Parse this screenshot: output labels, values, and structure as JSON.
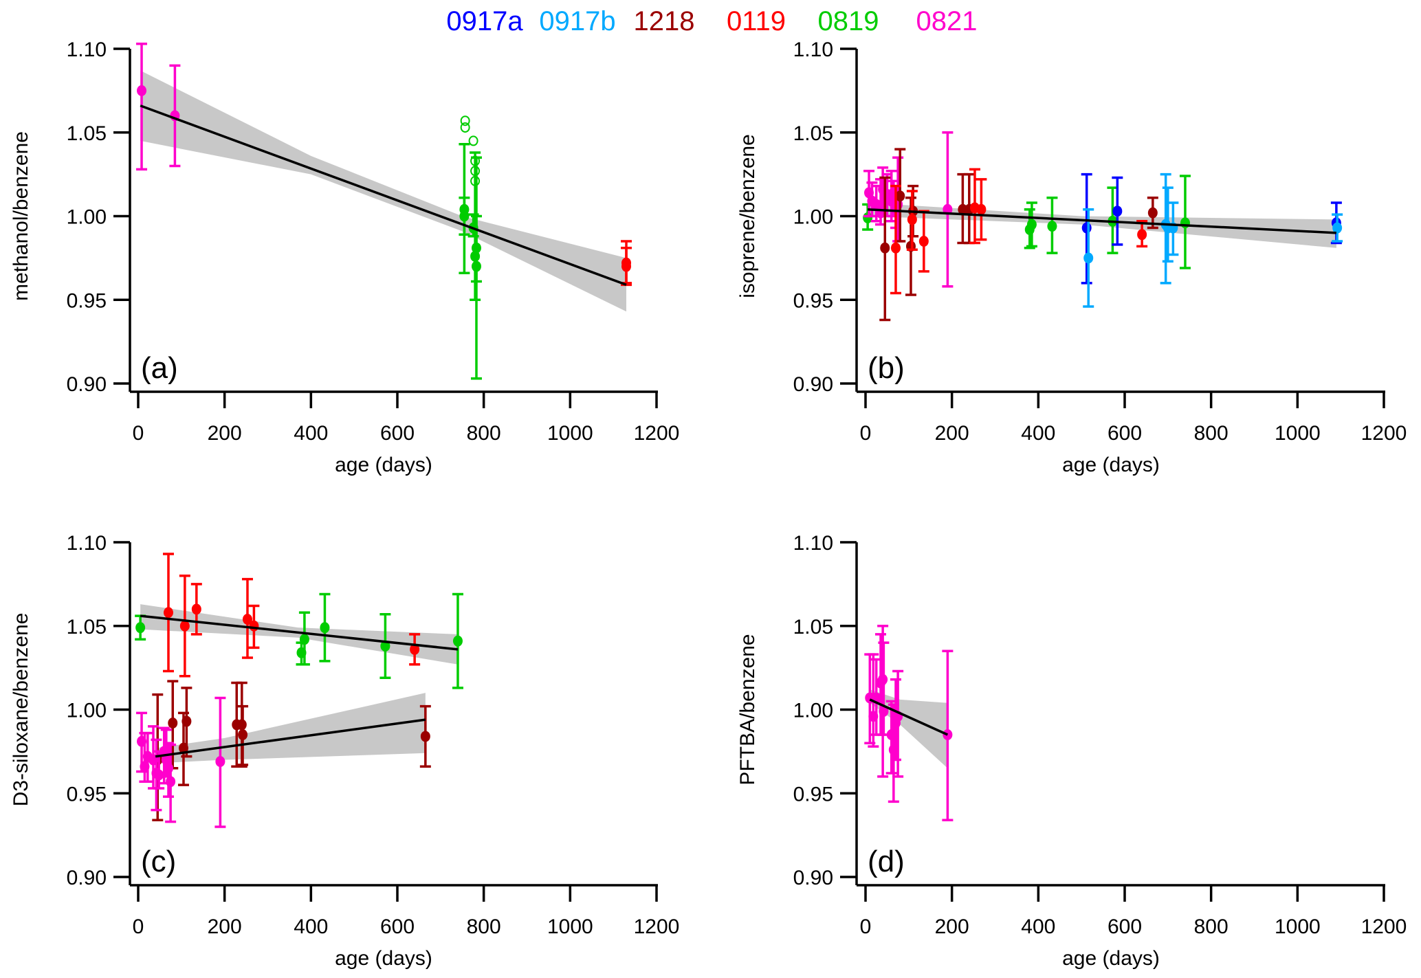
{
  "legend": [
    {
      "name": "0917a",
      "color": "#0000ff"
    },
    {
      "name": "0917b",
      "color": "#00a9ff"
    },
    {
      "name": "1218",
      "color": "#9b0000"
    },
    {
      "name": "0119",
      "color": "#ff0000"
    },
    {
      "name": "0819",
      "color": "#00cc00"
    },
    {
      "name": "0821",
      "color": "#ff00cc"
    }
  ],
  "chart_data": [
    {
      "type": "scatter",
      "panel_label": "(a)",
      "xlabel": "age (days)",
      "ylabel": "methanol/benzene",
      "xlim": [
        0,
        1200
      ],
      "ylim": [
        0.9,
        1.1
      ],
      "xticks": [
        "0",
        "200",
        "400",
        "600",
        "800",
        "1000",
        "1200"
      ],
      "yticks": [
        "0.90",
        "0.95",
        "1.00",
        "1.05",
        "1.10"
      ],
      "grid": false,
      "fits": [
        {
          "line": [
            [
              5,
              1.066
            ],
            [
              1130,
              0.959
            ]
          ],
          "band": [
            [
              5,
              1.045,
              1.087
            ],
            [
              400,
              1.025,
              1.036
            ],
            [
              750,
              0.991,
              1.0
            ],
            [
              1130,
              0.943,
              0.975
            ]
          ]
        }
      ],
      "series": [
        {
          "name": "0821",
          "points": [
            [
              8,
              1.075,
              1.028,
              1.103
            ],
            [
              85,
              1.06,
              1.03,
              1.09
            ]
          ]
        },
        {
          "name": "0819",
          "points": [
            [
              755,
              1.004,
              0.989,
              1.011
            ],
            [
              755,
              1.0,
              0.966,
              1.043
            ],
            [
              776,
              0.993,
              0.988,
              1.001
            ],
            [
              780,
              0.976,
              0.95,
              1.038
            ],
            [
              783,
              0.981,
              0.961,
              1.0
            ],
            [
              783,
              0.97,
              0.903,
              1.035
            ]
          ],
          "open_points": [
            [
              757,
              1.057
            ],
            [
              757,
              1.053
            ],
            [
              776,
              1.045
            ],
            [
              780,
              1.033
            ],
            [
              780,
              1.027
            ],
            [
              780,
              1.021
            ]
          ]
        },
        {
          "name": "0119",
          "points": [
            [
              1130,
              0.972,
              0.959,
              0.985
            ],
            [
              1130,
              0.97,
              0.96,
              0.981
            ]
          ]
        }
      ]
    },
    {
      "type": "scatter",
      "panel_label": "(b)",
      "xlabel": "age (days)",
      "ylabel": "isoprene/benzene",
      "xlim": [
        0,
        1200
      ],
      "ylim": [
        0.9,
        1.1
      ],
      "xticks": [
        "0",
        "200",
        "400",
        "600",
        "800",
        "1000",
        "1200"
      ],
      "yticks": [
        "0.90",
        "0.95",
        "1.00",
        "1.05",
        "1.10"
      ],
      "grid": false,
      "fits": [
        {
          "line": [
            [
              5,
              1.004
            ],
            [
              1090,
              0.99
            ]
          ],
          "band": [
            [
              5,
              1.0,
              1.008
            ],
            [
              500,
              0.995,
              1.0
            ],
            [
              1090,
              0.981,
              0.998
            ]
          ]
        }
      ],
      "series": [
        {
          "name": "0819",
          "points": [
            [
              5,
              0.999,
              0.992,
              1.007
            ],
            [
              380,
              0.992,
              0.981,
              1.004
            ],
            [
              385,
              0.995,
              0.982,
              1.008
            ],
            [
              432,
              0.994,
              0.978,
              1.011
            ],
            [
              572,
              0.997,
              0.978,
              1.017
            ],
            [
              740,
              0.996,
              0.969,
              1.024
            ]
          ]
        },
        {
          "name": "0821",
          "points": [
            [
              8,
              1.014,
              1.0,
              1.027
            ],
            [
              15,
              1.009,
              1.0,
              1.02
            ],
            [
              25,
              1.007,
              0.997,
              1.018
            ],
            [
              35,
              1.002,
              0.995,
              1.022
            ],
            [
              40,
              1.016,
              1.003,
              1.029
            ],
            [
              50,
              1.013,
              1.0,
              1.025
            ],
            [
              60,
              1.009,
              0.997,
              1.027
            ],
            [
              65,
              1.014,
              1.0,
              1.021
            ],
            [
              70,
              1.006,
              0.993,
              1.017
            ],
            [
              75,
              1.007,
              0.985,
              1.035
            ],
            [
              190,
              1.004,
              0.958,
              1.05
            ]
          ]
        },
        {
          "name": "1218",
          "points": [
            [
              45,
              0.981,
              0.938,
              1.023
            ],
            [
              80,
              1.012,
              0.985,
              1.04
            ],
            [
              105,
              0.982,
              0.953,
              1.011
            ],
            [
              110,
              1.003,
              0.988,
              1.018
            ],
            [
              225,
              1.004,
              0.984,
              1.025
            ],
            [
              240,
              1.004,
              0.984,
              1.025
            ],
            [
              665,
              1.002,
              0.993,
              1.011
            ]
          ]
        },
        {
          "name": "0119",
          "points": [
            [
              70,
              0.981,
              0.954,
              1.018
            ],
            [
              108,
              0.998,
              0.98,
              1.015
            ],
            [
              135,
              0.985,
              0.967,
              1.003
            ],
            [
              253,
              1.005,
              0.984,
              1.028
            ],
            [
              268,
              1.004,
              0.986,
              1.022
            ],
            [
              640,
              0.989,
              0.982,
              0.997
            ]
          ]
        },
        {
          "name": "0917a",
          "points": [
            [
              512,
              0.993,
              0.96,
              1.025
            ],
            [
              583,
              1.003,
              0.983,
              1.023
            ],
            [
              1090,
              0.996,
              0.984,
              1.008
            ]
          ]
        },
        {
          "name": "0917b",
          "points": [
            [
              516,
              0.975,
              0.946,
              1.004
            ],
            [
              695,
              0.995,
              0.96,
              1.025
            ],
            [
              700,
              0.993,
              0.973,
              1.017
            ],
            [
              712,
              0.993,
              0.977,
              1.008
            ],
            [
              1092,
              0.993,
              0.985,
              1.001
            ]
          ]
        }
      ]
    },
    {
      "type": "scatter",
      "panel_label": "(c)",
      "xlabel": "age (days)",
      "ylabel": "D3-siloxane/benzene",
      "xlim": [
        0,
        1200
      ],
      "ylim": [
        0.9,
        1.1
      ],
      "xticks": [
        "0",
        "200",
        "400",
        "600",
        "800",
        "1000",
        "1200"
      ],
      "yticks": [
        "0.90",
        "0.95",
        "1.00",
        "1.05",
        "1.10"
      ],
      "grid": false,
      "fits": [
        {
          "line": [
            [
              5,
              1.056
            ],
            [
              740,
              1.036
            ]
          ],
          "band": [
            [
              5,
              1.048,
              1.063
            ],
            [
              370,
              1.043,
              1.049
            ],
            [
              740,
              1.027,
              1.045
            ]
          ]
        },
        {
          "line": [
            [
              40,
              0.972
            ],
            [
              665,
              0.994
            ]
          ],
          "band": [
            [
              40,
              0.968,
              0.977
            ],
            [
              200,
              0.97,
              0.983
            ],
            [
              665,
              0.974,
              1.01
            ]
          ]
        }
      ],
      "series": [
        {
          "name": "0819",
          "points": [
            [
              5,
              1.049,
              1.042,
              1.056
            ],
            [
              378,
              1.034,
              1.027,
              1.04
            ],
            [
              385,
              1.042,
              1.027,
              1.058
            ],
            [
              432,
              1.049,
              1.029,
              1.069
            ],
            [
              572,
              1.038,
              1.019,
              1.057
            ],
            [
              740,
              1.041,
              1.013,
              1.069
            ]
          ]
        },
        {
          "name": "0119",
          "points": [
            [
              70,
              1.058,
              1.023,
              1.093
            ],
            [
              108,
              1.05,
              1.02,
              1.08
            ],
            [
              135,
              1.06,
              1.045,
              1.075
            ],
            [
              253,
              1.054,
              1.031,
              1.078
            ],
            [
              268,
              1.05,
              1.037,
              1.062
            ],
            [
              640,
              1.036,
              1.027,
              1.045
            ]
          ]
        },
        {
          "name": "1218",
          "points": [
            [
              45,
              0.97,
              0.934,
              1.009
            ],
            [
              80,
              0.992,
              0.965,
              1.017
            ],
            [
              105,
              0.977,
              0.955,
              0.998
            ],
            [
              112,
              0.993,
              0.972,
              1.013
            ],
            [
              228,
              0.991,
              0.966,
              1.016
            ],
            [
              240,
              0.991,
              0.966,
              1.016
            ],
            [
              242,
              0.985,
              0.967,
              1.002
            ],
            [
              665,
              0.984,
              0.966,
              1.002
            ]
          ]
        },
        {
          "name": "0821",
          "points": [
            [
              8,
              0.981,
              0.963,
              0.998
            ],
            [
              15,
              0.966,
              0.957,
              0.986
            ],
            [
              22,
              0.972,
              0.957,
              0.986
            ],
            [
              35,
              0.97,
              0.953,
              0.99
            ],
            [
              42,
              0.962,
              0.94,
              0.982
            ],
            [
              48,
              0.961,
              0.953,
              0.975
            ],
            [
              60,
              0.975,
              0.956,
              0.989
            ],
            [
              65,
              0.97,
              0.96,
              0.988
            ],
            [
              70,
              0.965,
              0.948,
              0.98
            ],
            [
              75,
              0.957,
              0.933,
              0.979
            ],
            [
              190,
              0.969,
              0.93,
              1.007
            ]
          ]
        }
      ]
    },
    {
      "type": "scatter",
      "panel_label": "(d)",
      "xlabel": "age (days)",
      "ylabel": "PFTBA/benzene",
      "xlim": [
        0,
        1200
      ],
      "ylim": [
        0.9,
        1.1
      ],
      "xticks": [
        "0",
        "200",
        "400",
        "600",
        "800",
        "1000",
        "1200"
      ],
      "yticks": [
        "0.90",
        "0.95",
        "1.00",
        "1.05",
        "1.10"
      ],
      "grid": false,
      "fits": [
        {
          "line": [
            [
              10,
              1.006
            ],
            [
              190,
              0.985
            ]
          ],
          "band": [
            [
              10,
              1.004,
              1.012
            ],
            [
              80,
              0.991,
              1.006
            ],
            [
              190,
              0.965,
              1.004
            ]
          ]
        }
      ],
      "series": [
        {
          "name": "0821",
          "points": [
            [
              10,
              1.007,
              0.98,
              1.033
            ],
            [
              18,
              0.996,
              0.978,
              1.033
            ],
            [
              25,
              1.007,
              0.985,
              1.03
            ],
            [
              35,
              1.016,
              0.985,
              1.045
            ],
            [
              40,
              1.018,
              0.96,
              1.05
            ],
            [
              42,
              0.999,
              0.985,
              1.04
            ],
            [
              60,
              0.985,
              0.962,
              1.005
            ],
            [
              65,
              0.976,
              0.945,
              1.003
            ],
            [
              70,
              0.992,
              0.97,
              1.018
            ],
            [
              75,
              0.996,
              0.96,
              1.023
            ],
            [
              190,
              0.985,
              0.934,
              1.035
            ]
          ]
        }
      ]
    }
  ]
}
